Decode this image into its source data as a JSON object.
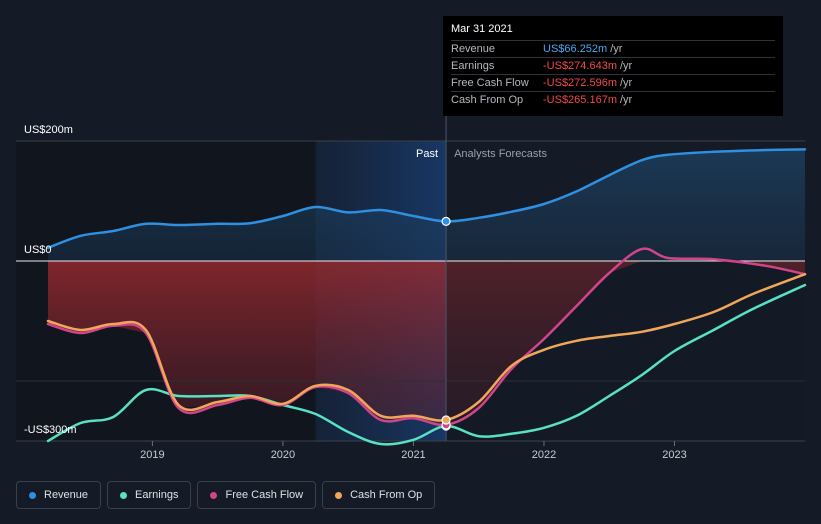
{
  "chart_data": {
    "type": "line",
    "x_ticks": [
      "2019",
      "2020",
      "2021",
      "2022",
      "2023"
    ],
    "y_ticks": [
      {
        "label": "US$200m",
        "value": 200
      },
      {
        "label": "US$0",
        "value": 0
      },
      {
        "label": "-US$300m",
        "value": -300
      }
    ],
    "ylim": [
      -300,
      200
    ],
    "xlim": [
      2018.2,
      2024.0
    ],
    "past_label": "Past",
    "forecast_label": "Analysts Forecasts",
    "past_end": 2021.25,
    "grid": true,
    "legend_position": "bottom-left",
    "series": [
      {
        "name": "Revenue",
        "color": "#2f8fe0",
        "values": [
          [
            2018.2,
            22
          ],
          [
            2018.45,
            42
          ],
          [
            2018.7,
            50
          ],
          [
            2018.95,
            62
          ],
          [
            2019.2,
            60
          ],
          [
            2019.5,
            62
          ],
          [
            2019.75,
            63
          ],
          [
            2020.0,
            75
          ],
          [
            2020.25,
            90
          ],
          [
            2020.5,
            81
          ],
          [
            2020.75,
            85
          ],
          [
            2021.0,
            75
          ],
          [
            2021.25,
            66
          ],
          [
            2021.5,
            72
          ],
          [
            2021.75,
            82
          ],
          [
            2022.0,
            95
          ],
          [
            2022.25,
            116
          ],
          [
            2022.5,
            143
          ],
          [
            2022.75,
            168
          ],
          [
            2022.95,
            177
          ],
          [
            2023.3,
            182
          ],
          [
            2023.7,
            185
          ],
          [
            2024.0,
            186
          ]
        ]
      },
      {
        "name": "Earnings",
        "color": "#58e1c5",
        "values": [
          [
            2018.2,
            -300
          ],
          [
            2018.45,
            -270
          ],
          [
            2018.7,
            -260
          ],
          [
            2018.95,
            -215
          ],
          [
            2019.2,
            -225
          ],
          [
            2019.5,
            -225
          ],
          [
            2019.75,
            -225
          ],
          [
            2020.0,
            -240
          ],
          [
            2020.25,
            -255
          ],
          [
            2020.5,
            -285
          ],
          [
            2020.75,
            -305
          ],
          [
            2021.0,
            -298
          ],
          [
            2021.25,
            -275
          ],
          [
            2021.5,
            -292
          ],
          [
            2021.75,
            -288
          ],
          [
            2022.0,
            -278
          ],
          [
            2022.25,
            -258
          ],
          [
            2022.5,
            -225
          ],
          [
            2022.75,
            -190
          ],
          [
            2023.0,
            -150
          ],
          [
            2023.3,
            -115
          ],
          [
            2023.6,
            -80
          ],
          [
            2024.0,
            -40
          ]
        ]
      },
      {
        "name": "Free Cash Flow",
        "color": "#d0458a",
        "values": [
          [
            2018.2,
            -105
          ],
          [
            2018.45,
            -120
          ],
          [
            2018.7,
            -108
          ],
          [
            2018.95,
            -120
          ],
          [
            2019.2,
            -245
          ],
          [
            2019.5,
            -240
          ],
          [
            2019.75,
            -228
          ],
          [
            2020.0,
            -240
          ],
          [
            2020.25,
            -210
          ],
          [
            2020.5,
            -220
          ],
          [
            2020.75,
            -265
          ],
          [
            2021.0,
            -262
          ],
          [
            2021.25,
            -273
          ],
          [
            2021.5,
            -245
          ],
          [
            2021.75,
            -180
          ],
          [
            2022.0,
            -130
          ],
          [
            2022.25,
            -75
          ],
          [
            2022.5,
            -20
          ],
          [
            2022.75,
            20
          ],
          [
            2022.95,
            5
          ],
          [
            2023.3,
            3
          ],
          [
            2023.7,
            -8
          ],
          [
            2024.0,
            -22
          ]
        ]
      },
      {
        "name": "Cash From Op",
        "color": "#f0a75a",
        "values": [
          [
            2018.2,
            -100
          ],
          [
            2018.45,
            -115
          ],
          [
            2018.7,
            -105
          ],
          [
            2018.95,
            -115
          ],
          [
            2019.2,
            -240
          ],
          [
            2019.5,
            -235
          ],
          [
            2019.75,
            -225
          ],
          [
            2020.0,
            -238
          ],
          [
            2020.25,
            -208
          ],
          [
            2020.5,
            -215
          ],
          [
            2020.75,
            -258
          ],
          [
            2021.0,
            -258
          ],
          [
            2021.25,
            -265
          ],
          [
            2021.5,
            -235
          ],
          [
            2021.75,
            -175
          ],
          [
            2022.0,
            -148
          ],
          [
            2022.25,
            -133
          ],
          [
            2022.5,
            -125
          ],
          [
            2022.75,
            -118
          ],
          [
            2023.0,
            -105
          ],
          [
            2023.3,
            -85
          ],
          [
            2023.6,
            -55
          ],
          [
            2024.0,
            -22
          ]
        ]
      }
    ]
  },
  "tooltip": {
    "date": "Mar 31 2021",
    "rows": [
      {
        "name": "Revenue",
        "value": "US$66.252m",
        "unit": "/yr",
        "color": "#4aa8f0"
      },
      {
        "name": "Earnings",
        "value": "-US$274.643m",
        "unit": "/yr",
        "color": "#f2484f"
      },
      {
        "name": "Free Cash Flow",
        "value": "-US$272.596m",
        "unit": "/yr",
        "color": "#f2484f"
      },
      {
        "name": "Cash From Op",
        "value": "-US$265.167m",
        "unit": "/yr",
        "color": "#f2484f"
      }
    ]
  },
  "legend": [
    {
      "label": "Revenue",
      "color": "#2f8fe0"
    },
    {
      "label": "Earnings",
      "color": "#58e1c5"
    },
    {
      "label": "Free Cash Flow",
      "color": "#d0458a"
    },
    {
      "label": "Cash From Op",
      "color": "#f0a75a"
    }
  ]
}
